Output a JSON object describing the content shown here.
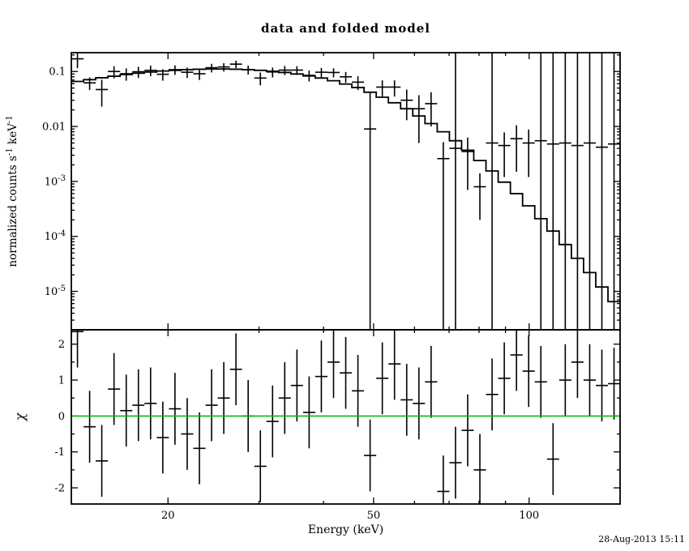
{
  "chart_data": {
    "type": "line",
    "title": "data and folded model",
    "xlabel": "Energy (keV)",
    "timestamp": "28-Aug-2013 15:11",
    "colors": {
      "foreground": "#000000",
      "background": "#ffffff",
      "zero_line": "#00bf00"
    },
    "panels": [
      {
        "name": "spectrum",
        "ylabel": "normalized counts s^{-1} keV^{-1}",
        "xscale": "log",
        "yscale": "log",
        "xlim": [
          13,
          150
        ],
        "ylim": [
          2e-06,
          0.22
        ],
        "x_major_ticks": [
          20,
          50,
          100
        ],
        "x_minor_ticks": [
          30,
          40,
          60,
          70,
          80,
          90
        ],
        "y_major_ticks": [
          {
            "v": 0.1,
            "label": "0.1"
          },
          {
            "v": 0.01,
            "label": "0.01"
          },
          {
            "v": 0.001,
            "label": "10^{-3}"
          },
          {
            "v": 0.0001,
            "label": "10^{-4}"
          },
          {
            "v": 1e-05,
            "label": "10^{-5}"
          }
        ],
        "bin_edges_keV": [
          13.0,
          13.73,
          14.49,
          15.3,
          16.16,
          17.06,
          18.01,
          19.02,
          20.08,
          21.2,
          22.39,
          23.64,
          24.96,
          26.35,
          27.82,
          29.38,
          31.02,
          32.75,
          34.58,
          36.51,
          38.55,
          40.71,
          42.98,
          45.38,
          47.91,
          50.59,
          53.41,
          56.4,
          59.55,
          62.87,
          66.39,
          70.1,
          74.01,
          78.14,
          82.51,
          87.12,
          91.99,
          97.13,
          102.55,
          108.28,
          114.33,
          120.72,
          127.47,
          134.59,
          142.11,
          150.0
        ],
        "data_counts": [
          0.17,
          0.062,
          0.047,
          0.1,
          0.091,
          0.099,
          0.105,
          0.089,
          0.108,
          0.097,
          0.091,
          0.117,
          0.121,
          0.136,
          0.108,
          0.076,
          0.098,
          0.106,
          0.106,
          0.085,
          0.097,
          0.096,
          0.08,
          0.064,
          0.009,
          0.052,
          0.052,
          0.03,
          0.021,
          0.026,
          0.0026,
          0.004,
          0.0035,
          0.0008,
          0.005,
          0.0045,
          0.006,
          0.005,
          0.0055,
          0.0048,
          0.005,
          0.0045,
          0.005,
          0.0042,
          0.0048
        ],
        "data_err": [
          0.055,
          0.016,
          0.024,
          0.025,
          0.023,
          0.023,
          0.023,
          0.021,
          0.021,
          0.021,
          0.021,
          0.021,
          0.021,
          0.021,
          0.02,
          0.02,
          0.02,
          0.02,
          0.019,
          0.019,
          0.019,
          0.018,
          0.018,
          0.018,
          0.033,
          0.017,
          0.017,
          0.017,
          0.016,
          0.016,
          0.0026,
          0.3,
          0.0028,
          0.0006,
          0.35,
          0.0033,
          0.0045,
          0.0038,
          0.45,
          0.45,
          0.5,
          0.5,
          0.5,
          0.5,
          0.5
        ],
        "model_counts": [
          0.066,
          0.071,
          0.077,
          0.082,
          0.088,
          0.093,
          0.098,
          0.102,
          0.105,
          0.108,
          0.11,
          0.111,
          0.111,
          0.11,
          0.108,
          0.105,
          0.101,
          0.096,
          0.09,
          0.083,
          0.076,
          0.068,
          0.059,
          0.051,
          0.042,
          0.034,
          0.027,
          0.021,
          0.0155,
          0.0113,
          0.008,
          0.0055,
          0.0037,
          0.0024,
          0.00155,
          0.00097,
          0.0006,
          0.00036,
          0.00021,
          0.000125,
          7.1e-05,
          4e-05,
          2.2e-05,
          1.2e-05,
          6.5e-06
        ]
      },
      {
        "name": "residuals",
        "ylabel": "χ",
        "yscale": "linear",
        "ylim": [
          -2.45,
          2.4
        ],
        "y_major_ticks": [
          -2,
          -1,
          0,
          1,
          2
        ],
        "chi": [
          2.35,
          -0.3,
          -1.25,
          0.75,
          0.15,
          0.3,
          0.35,
          -0.6,
          0.2,
          -0.5,
          -0.9,
          0.3,
          0.5,
          1.3,
          0.0,
          -1.4,
          -0.15,
          0.5,
          0.85,
          0.1,
          1.1,
          1.5,
          1.2,
          0.7,
          -1.1,
          1.05,
          1.45,
          0.45,
          0.35,
          0.95,
          -2.1,
          -1.3,
          -0.4,
          -1.5,
          0.6,
          1.05,
          1.7,
          1.25,
          0.95,
          -1.2,
          1.0,
          1.5,
          1.0,
          0.85,
          0.9
        ],
        "chi_err": 1.0
      }
    ]
  }
}
